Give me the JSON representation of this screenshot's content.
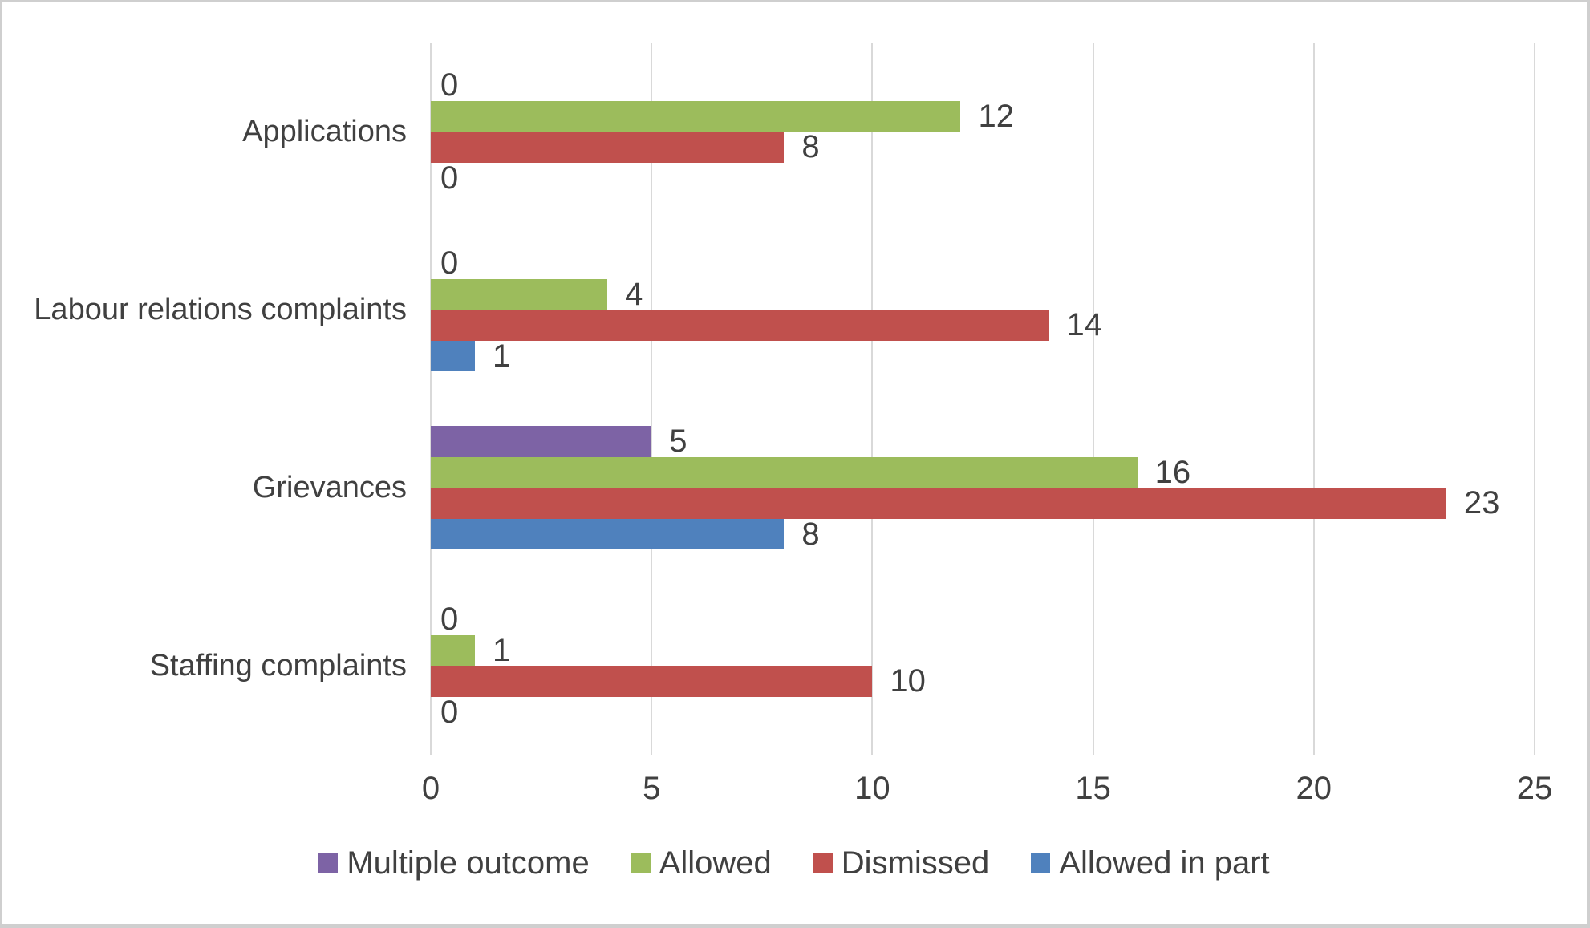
{
  "chart_data": {
    "type": "bar",
    "orientation": "horizontal",
    "title": "",
    "xlabel": "",
    "ylabel": "",
    "categories": [
      "Applications",
      "Labour relations complaints",
      "Grievances",
      "Staffing complaints"
    ],
    "series": [
      {
        "name": "Multiple outcome",
        "color": "#7D63A5",
        "values": [
          0,
          0,
          5,
          0
        ]
      },
      {
        "name": "Allowed",
        "color": "#9CBC5C",
        "values": [
          12,
          4,
          16,
          1
        ]
      },
      {
        "name": "Dismissed",
        "color": "#C0504D",
        "values": [
          8,
          14,
          23,
          10
        ]
      },
      {
        "name": "Allowed in part",
        "color": "#4F81BD",
        "values": [
          0,
          1,
          8,
          0
        ]
      }
    ],
    "xlim": [
      0,
      25
    ],
    "x_ticks": [
      "0",
      "5",
      "10",
      "15",
      "20",
      "25"
    ],
    "grid": true,
    "data_labels": true,
    "legend_position": "bottom"
  },
  "ui_colors": {
    "background": "#FFFFFF",
    "text": "#404040",
    "gridline": "#D9D9D9",
    "border": "#CFCFCF"
  }
}
